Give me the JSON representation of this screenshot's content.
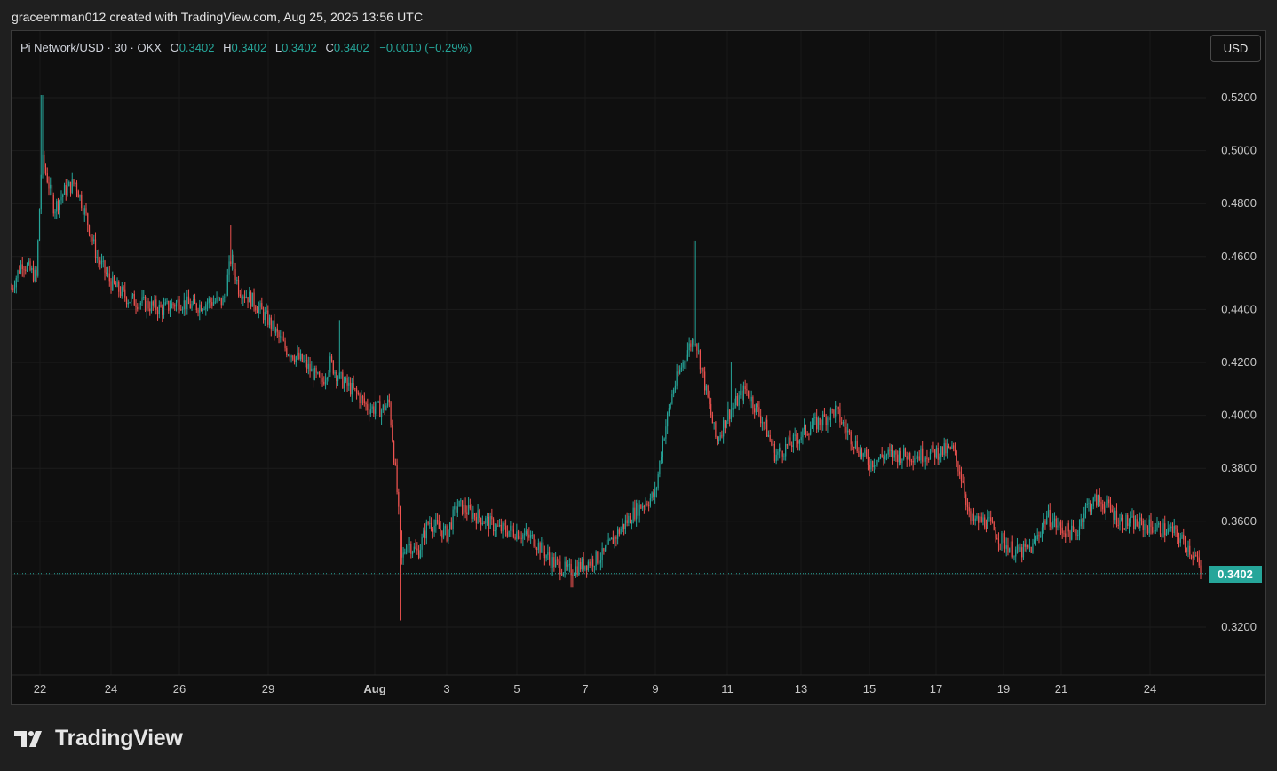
{
  "header": {
    "attribution": "graceemman012 created with TradingView.com, Aug 25, 2025 13:56 UTC"
  },
  "legend": {
    "symbol": "Pi Network/USD · 30 · OKX",
    "open_label": "O",
    "open": "0.3402",
    "high_label": "H",
    "high": "0.3402",
    "low_label": "L",
    "low": "0.3402",
    "close_label": "C",
    "close": "0.3402",
    "change": "−0.0010 (−0.29%)"
  },
  "currency_button": "USD",
  "last_price_tag": "0.3402",
  "brand": {
    "name": "TradingView"
  },
  "colors": {
    "up": "#26a69a",
    "down": "#ef5350",
    "background": "#0f0f0f",
    "grid": "#1e1e1e"
  },
  "chart_data": {
    "type": "candlestick",
    "interval": "30 min",
    "y_axis_ticks": [
      "0.5200",
      "0.5000",
      "0.4800",
      "0.4600",
      "0.4400",
      "0.4200",
      "0.4000",
      "0.3800",
      "0.3600",
      "0.3400",
      "0.3200"
    ],
    "ylim": [
      0.3,
      0.535
    ],
    "x_axis_ticks": [
      {
        "label": "22",
        "day": 22
      },
      {
        "label": "24",
        "day": 24
      },
      {
        "label": "26",
        "day": 26
      },
      {
        "label": "29",
        "day": 29
      },
      {
        "label": "Aug",
        "day": 32
      },
      {
        "label": "3",
        "day": 34
      },
      {
        "label": "5",
        "day": 36
      },
      {
        "label": "7",
        "day": 38
      },
      {
        "label": "9",
        "day": 40
      },
      {
        "label": "11",
        "day": 42
      },
      {
        "label": "13",
        "day": 44
      },
      {
        "label": "15",
        "day": 46
      },
      {
        "label": "17",
        "day": 48
      },
      {
        "label": "19",
        "day": 50
      },
      {
        "label": "21",
        "day": 52
      },
      {
        "label": "24",
        "day": 55
      }
    ],
    "x_day_anchors": [
      [
        21.2,
        13
      ],
      [
        22,
        45
      ],
      [
        24,
        125
      ],
      [
        26,
        202
      ],
      [
        29,
        302
      ],
      [
        32,
        422
      ],
      [
        34,
        503
      ],
      [
        36,
        582
      ],
      [
        38,
        659
      ],
      [
        40,
        738
      ],
      [
        42,
        819
      ],
      [
        44,
        902
      ],
      [
        46,
        979
      ],
      [
        48,
        1054
      ],
      [
        50,
        1130
      ],
      [
        52,
        1195
      ],
      [
        55,
        1295
      ],
      [
        56.1,
        1352
      ]
    ],
    "last_price": 0.3402,
    "price_path": [
      [
        21.2,
        0.448
      ],
      [
        21.5,
        0.458
      ],
      [
        21.9,
        0.452
      ],
      [
        22.05,
        0.497
      ],
      [
        22.2,
        0.49
      ],
      [
        22.4,
        0.478
      ],
      [
        22.7,
        0.485
      ],
      [
        23.0,
        0.488
      ],
      [
        23.3,
        0.475
      ],
      [
        23.6,
        0.46
      ],
      [
        24.0,
        0.45
      ],
      [
        24.5,
        0.444
      ],
      [
        25.0,
        0.442
      ],
      [
        25.5,
        0.44
      ],
      [
        26.0,
        0.443
      ],
      [
        26.5,
        0.441
      ],
      [
        27.0,
        0.443
      ],
      [
        27.5,
        0.443
      ],
      [
        27.75,
        0.46
      ],
      [
        28.0,
        0.448
      ],
      [
        28.5,
        0.443
      ],
      [
        29.0,
        0.436
      ],
      [
        29.5,
        0.425
      ],
      [
        30.0,
        0.42
      ],
      [
        30.5,
        0.412
      ],
      [
        30.75,
        0.42
      ],
      [
        31.0,
        0.414
      ],
      [
        31.5,
        0.408
      ],
      [
        31.8,
        0.403
      ],
      [
        32.2,
        0.402
      ],
      [
        32.4,
        0.405
      ],
      [
        32.6,
        0.375
      ],
      [
        32.75,
        0.345
      ],
      [
        32.9,
        0.352
      ],
      [
        33.2,
        0.348
      ],
      [
        33.5,
        0.36
      ],
      [
        34.0,
        0.355
      ],
      [
        34.3,
        0.366
      ],
      [
        35.0,
        0.361
      ],
      [
        35.5,
        0.357
      ],
      [
        36.0,
        0.356
      ],
      [
        36.5,
        0.353
      ],
      [
        37.0,
        0.345
      ],
      [
        37.5,
        0.341
      ],
      [
        38.0,
        0.344
      ],
      [
        38.5,
        0.347
      ],
      [
        39.0,
        0.357
      ],
      [
        39.5,
        0.365
      ],
      [
        40.0,
        0.37
      ],
      [
        40.2,
        0.39
      ],
      [
        40.5,
        0.41
      ],
      [
        40.9,
        0.425
      ],
      [
        41.1,
        0.43
      ],
      [
        41.4,
        0.41
      ],
      [
        41.7,
        0.39
      ],
      [
        42.0,
        0.4
      ],
      [
        42.5,
        0.41
      ],
      [
        43.0,
        0.397
      ],
      [
        43.3,
        0.385
      ],
      [
        43.8,
        0.39
      ],
      [
        44.2,
        0.395
      ],
      [
        44.6,
        0.398
      ],
      [
        45.0,
        0.402
      ],
      [
        45.3,
        0.395
      ],
      [
        45.8,
        0.385
      ],
      [
        46.0,
        0.382
      ],
      [
        46.5,
        0.385
      ],
      [
        47.0,
        0.385
      ],
      [
        47.5,
        0.385
      ],
      [
        48.0,
        0.386
      ],
      [
        48.5,
        0.387
      ],
      [
        48.8,
        0.375
      ],
      [
        49.0,
        0.36
      ],
      [
        49.5,
        0.36
      ],
      [
        50.0,
        0.352
      ],
      [
        50.5,
        0.348
      ],
      [
        51.0,
        0.35
      ],
      [
        51.5,
        0.362
      ],
      [
        52.0,
        0.357
      ],
      [
        52.5,
        0.355
      ],
      [
        52.8,
        0.365
      ],
      [
        53.2,
        0.368
      ],
      [
        53.6,
        0.365
      ],
      [
        54.0,
        0.36
      ],
      [
        54.5,
        0.359
      ],
      [
        55.0,
        0.358
      ],
      [
        55.5,
        0.356
      ],
      [
        55.8,
        0.351
      ],
      [
        56.0,
        0.346
      ],
      [
        56.1,
        0.3402
      ]
    ],
    "notable_highs": [
      [
        22.05,
        0.521
      ],
      [
        27.75,
        0.472
      ],
      [
        31.0,
        0.436
      ],
      [
        41.1,
        0.466
      ],
      [
        42.1,
        0.42
      ]
    ],
    "notable_lows": [
      [
        32.7,
        0.3225
      ],
      [
        37.6,
        0.335
      ]
    ]
  }
}
